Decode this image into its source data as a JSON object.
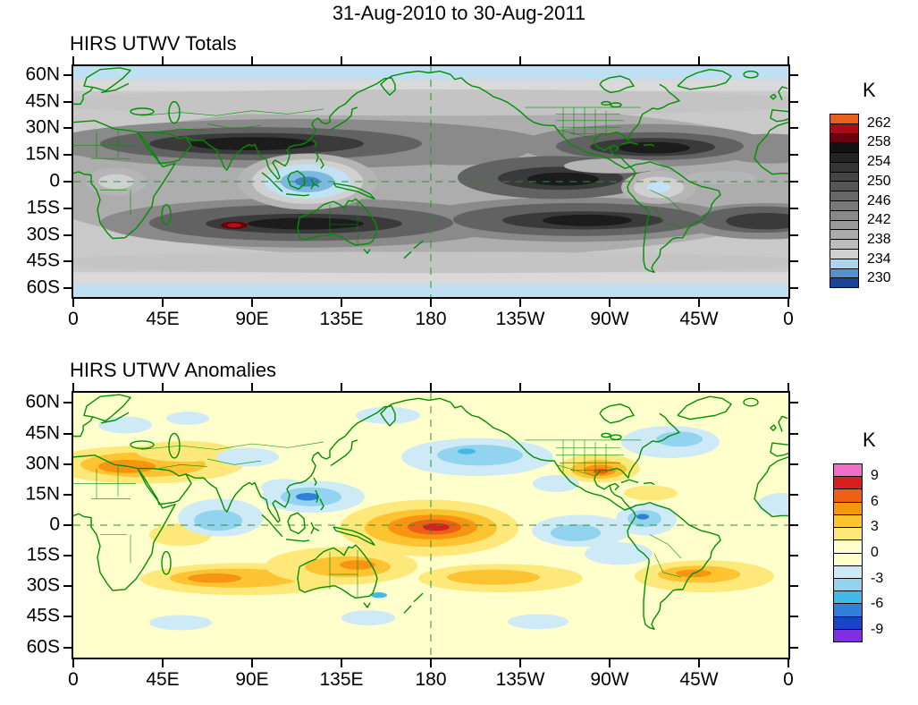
{
  "main": {
    "title": "31-Aug-2010 to 30-Aug-2011"
  },
  "panels": {
    "totals": {
      "title": "HIRS UTWV Totals",
      "colorbar": {
        "unit": "K",
        "labels": [
          "262",
          "258",
          "254",
          "250",
          "246",
          "242",
          "238",
          "234",
          "230"
        ],
        "colors": [
          "#e8611c",
          "#a50f15",
          "#6b0010",
          "#121212",
          "#232323",
          "#343434",
          "#454545",
          "#565656",
          "#676767",
          "#787878",
          "#898989",
          "#9a9a9a",
          "#ababab",
          "#bcbcbc",
          "#d0d0d0",
          "#aed4ea",
          "#5094cf",
          "#1a4496"
        ]
      }
    },
    "anomalies": {
      "title": "HIRS UTWV Anomalies",
      "colorbar": {
        "unit": "K",
        "labels": [
          "9",
          "6",
          "3",
          "0",
          "-3",
          "-6",
          "-9"
        ],
        "colors": [
          "#f06ec8",
          "#d62020",
          "#ef6017",
          "#f79410",
          "#fdc331",
          "#ffe87a",
          "#ffffcc",
          "#ffffcc",
          "#cfeaf7",
          "#92d4ef",
          "#40bbe8",
          "#2f80d8",
          "#1c44c8",
          "#8030e0"
        ]
      }
    }
  },
  "axes": {
    "lat_labels": [
      "60N",
      "45N",
      "30N",
      "15N",
      "0",
      "15S",
      "30S",
      "45S",
      "60S"
    ],
    "lon_labels": [
      "0",
      "45E",
      "90E",
      "135E",
      "180",
      "135W",
      "90W",
      "45W",
      "0"
    ]
  },
  "chart_data": [
    {
      "type": "heatmap",
      "subtype": "filled-contour world map, equirectangular, longitudes 0-360E",
      "title": "HIRS UTWV Totals",
      "period": "31-Aug-2010 to 30-Aug-2011",
      "units": "K",
      "lat_ticks": [
        "60N",
        "45N",
        "30N",
        "15N",
        "0",
        "15S",
        "30S",
        "45S",
        "60S"
      ],
      "lon_ticks": [
        "0",
        "45E",
        "90E",
        "135E",
        "180",
        "135W",
        "90W",
        "45W",
        "0"
      ],
      "contour_levels_K": [
        230,
        232,
        234,
        236,
        238,
        240,
        242,
        244,
        246,
        248,
        250,
        252,
        254,
        256,
        258,
        260,
        262
      ],
      "colorbar_labels_top_to_bottom": [
        "262",
        "258",
        "254",
        "250",
        "246",
        "242",
        "238",
        "234",
        "230"
      ],
      "colorbar_colors_top_to_bottom": [
        "#e8611c",
        "#a50f15",
        "#6b0010",
        "#121212",
        "#232323",
        "#343434",
        "#454545",
        "#565656",
        "#676767",
        "#787878",
        "#898989",
        "#9a9a9a",
        "#ababab",
        "#bcbcbc",
        "#d0d0d0",
        "#aed4ea",
        "#5094cf",
        "#1a4496"
      ],
      "reference_lines": [
        "dashed equator (0 lat)",
        "dashed date line (180 lon)"
      ],
      "features": [
        "Dark gray/near-black (warm, dry, ~250-256 K) subtropical bands over N Africa through S Asia (~20N), NE Pacific (~20N), S Indian Ocean (~25S), central S Pacific (~20S) and S Atlantic (~25S)",
        "Dark band along the equatorial central/east Pacific east of the date line",
        "Small dark-red maximum (~258-260 K) near 80E, 28S in the S Indian Ocean",
        "Light blue minima (~232-238 K, moist/convective) over the Maritime Continent, with lighter gray over the Congo and Amazon",
        "Pale blue strips along the 60N and 60S edges; green coastlines and borders overlaid"
      ]
    },
    {
      "type": "heatmap",
      "subtype": "filled-contour world map, equirectangular, longitudes 0-360E",
      "title": "HIRS UTWV Anomalies",
      "period": "31-Aug-2010 to 30-Aug-2011",
      "units": "K",
      "lat_ticks": [
        "60N",
        "45N",
        "30N",
        "15N",
        "0",
        "15S",
        "30S",
        "45S",
        "60S"
      ],
      "lon_ticks": [
        "0",
        "45E",
        "90E",
        "135E",
        "180",
        "135W",
        "90W",
        "45W",
        "0"
      ],
      "contour_levels_K": [
        -9,
        -7.5,
        -6,
        -4.5,
        -3,
        -1.5,
        0,
        1.5,
        3,
        4.5,
        6,
        7.5,
        9
      ],
      "colorbar_labels_top_to_bottom": [
        "9",
        "6",
        "3",
        "0",
        "-3",
        "-6",
        "-9"
      ],
      "colorbar_colors_top_to_bottom": [
        "#f06ec8",
        "#d62020",
        "#ef6017",
        "#f79410",
        "#fdc331",
        "#ffe87a",
        "#ffffcc",
        "#ffffcc",
        "#cfeaf7",
        "#92d4ef",
        "#40bbe8",
        "#2f80d8",
        "#1c44c8",
        "#8030e0"
      ],
      "reference_lines": [
        "dashed equator (0 lat)",
        "dashed date line (180 lon)"
      ],
      "features": [
        "Strong positive anomaly (+6 to +9 K, red core) centered on the equator near the date line",
        "Orange/yellow positive anomalies over N Africa and the Middle East (~30N), the S Indian Ocean (~30S), Australia/Coral Sea, SW Pacific (~30S), S Atlantic (~30S) and a dark-orange core over Texas/N Mexico",
        "Negative anomalies (-3 to -6 K, blue) over the central Indian Ocean, Philippine Sea (~15N), central N Pacific (~35N), E equatorial Pacific, NW South America and the W North Atlantic",
        "Scattered light-blue patches over Europe and along 45-55S; background near 0 K (pale yellow) elsewhere"
      ]
    }
  ]
}
